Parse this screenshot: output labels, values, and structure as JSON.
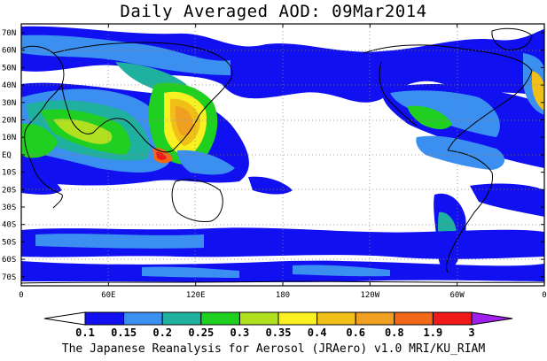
{
  "title": "Daily Averaged AOD: 09Mar2014",
  "footer": "The Japanese Reanalysis for Aerosol (JRAero) v1.0 MRI/KU_RIAM",
  "map": {
    "lat_labels": [
      "70N",
      "60N",
      "50N",
      "40N",
      "30N",
      "20N",
      "10N",
      "EQ",
      "10S",
      "20S",
      "30S",
      "40S",
      "50S",
      "60S",
      "70S"
    ],
    "lon_labels": [
      "0",
      "60E",
      "120E",
      "180",
      "120W",
      "60W",
      "0"
    ]
  },
  "colorbar": {
    "labels": [
      "0.1",
      "0.15",
      "0.2",
      "0.25",
      "0.3",
      "0.35",
      "0.4",
      "0.6",
      "0.8",
      "1.9",
      "3"
    ],
    "colors": [
      "#ffffff",
      "#1010f0",
      "#3a8ff0",
      "#20b0a0",
      "#20d020",
      "#b0e020",
      "#f8f020",
      "#f0c018",
      "#f0a020",
      "#f06818",
      "#f01818",
      "#a020f0"
    ]
  }
}
